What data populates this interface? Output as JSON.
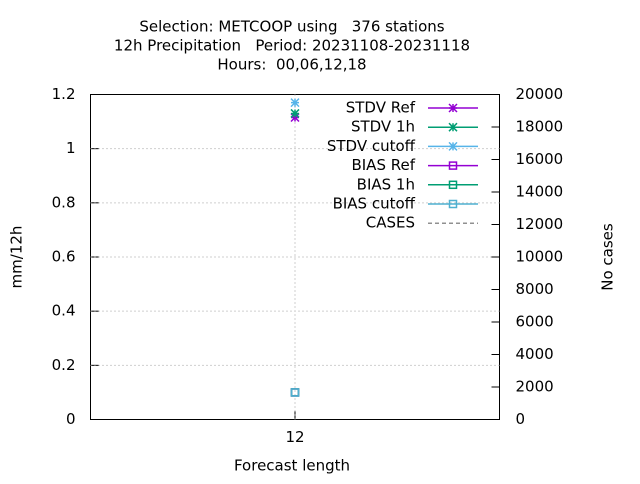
{
  "chart_data": {
    "type": "line",
    "title": [
      "Selection: METCOOP using   376 stations",
      "12h Precipitation   Period: 20231108-20231118",
      "Hours:  00,06,12,18"
    ],
    "x_label": "Forecast length",
    "y_label": "mm/12h",
    "y2_label": "No cases",
    "x": [
      12
    ],
    "xlim": [
      11,
      13
    ],
    "xticks": [
      12
    ],
    "ylim": [
      0,
      1.2
    ],
    "yticks": [
      0,
      0.2,
      0.4,
      0.6,
      0.8,
      1,
      1.2
    ],
    "y2lim": [
      0,
      20000
    ],
    "y2ticks": [
      0,
      2000,
      4000,
      6000,
      8000,
      10000,
      12000,
      14000,
      16000,
      18000,
      20000
    ],
    "grid": true,
    "legend": "top-right",
    "series": [
      {
        "name": "STDV Ref",
        "color": "#9400d3",
        "marker": "star",
        "values": [
          1.115
        ]
      },
      {
        "name": "STDV 1h",
        "color": "#009e73",
        "marker": "star",
        "values": [
          1.13
        ]
      },
      {
        "name": "STDV cutoff",
        "color": "#56b4e9",
        "marker": "star",
        "values": [
          1.17
        ]
      },
      {
        "name": "BIAS Ref",
        "color": "#9400d3",
        "marker": "square",
        "values": [
          0.1
        ]
      },
      {
        "name": "BIAS 1h",
        "color": "#009e73",
        "marker": "square",
        "values": [
          0.1
        ]
      },
      {
        "name": "BIAS cutoff",
        "color": "#4fb0d0",
        "marker": "square",
        "values": [
          0.1
        ]
      },
      {
        "name": "CASES",
        "color": "#909090",
        "marker": "none",
        "dashed": true,
        "axis": "y2",
        "values": [
          null
        ]
      }
    ]
  }
}
